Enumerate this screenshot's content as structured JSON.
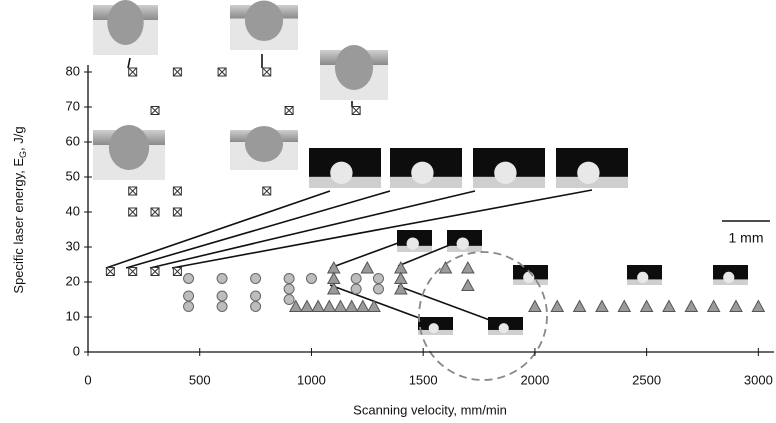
{
  "chart_data": {
    "type": "scatter",
    "xlabel": "Scanning velocity, mm/min",
    "ylabel": {
      "main": "Specific laser energy, E",
      "sub": "G",
      "rest": ", J/g"
    },
    "scale_bar": "1 mm",
    "xlim": [
      0,
      3070
    ],
    "ylim": [
      0,
      82
    ],
    "xticks": [
      0,
      500,
      1000,
      1500,
      2000,
      2500,
      3000
    ],
    "yticks": [
      0,
      10,
      20,
      30,
      40,
      50,
      60,
      70,
      80
    ],
    "series": [
      {
        "marker": "crossed-square",
        "color": "#ffffff",
        "x": [
          200,
          400,
          600,
          800,
          300,
          900,
          1200,
          200,
          400,
          800,
          200,
          300,
          400,
          100,
          200,
          300,
          400
        ],
        "values": [
          80,
          80,
          80,
          80,
          69,
          69,
          69,
          46,
          46,
          46,
          40,
          40,
          40,
          23,
          23,
          23,
          23
        ]
      },
      {
        "marker": "circle",
        "color": "#bdbdbd",
        "x": [
          450,
          450,
          450,
          600,
          600,
          600,
          750,
          750,
          750,
          900,
          900,
          900,
          1000,
          1200,
          1200,
          1300,
          1300
        ],
        "values": [
          21,
          16,
          13,
          21,
          16,
          13,
          21,
          16,
          13,
          21,
          18,
          15,
          21,
          21,
          18,
          21,
          18
        ]
      },
      {
        "marker": "triangle",
        "color": "#9a9a9a",
        "x": [
          1100,
          1100,
          1100,
          1250,
          1400,
          1400,
          1400,
          1600,
          1700,
          1700,
          930,
          980,
          1030,
          1080,
          1130,
          1180,
          1230,
          1280,
          2000,
          2100,
          2200,
          2300,
          2400,
          2500,
          2600,
          2700,
          2800,
          2900,
          3000
        ],
        "values": [
          24,
          21,
          18,
          24,
          24,
          21,
          18,
          24,
          24,
          19,
          13,
          13,
          13,
          13,
          13,
          13,
          13,
          13,
          13,
          13,
          13,
          13,
          13,
          13,
          13,
          13,
          13,
          13,
          13
        ]
      }
    ]
  }
}
